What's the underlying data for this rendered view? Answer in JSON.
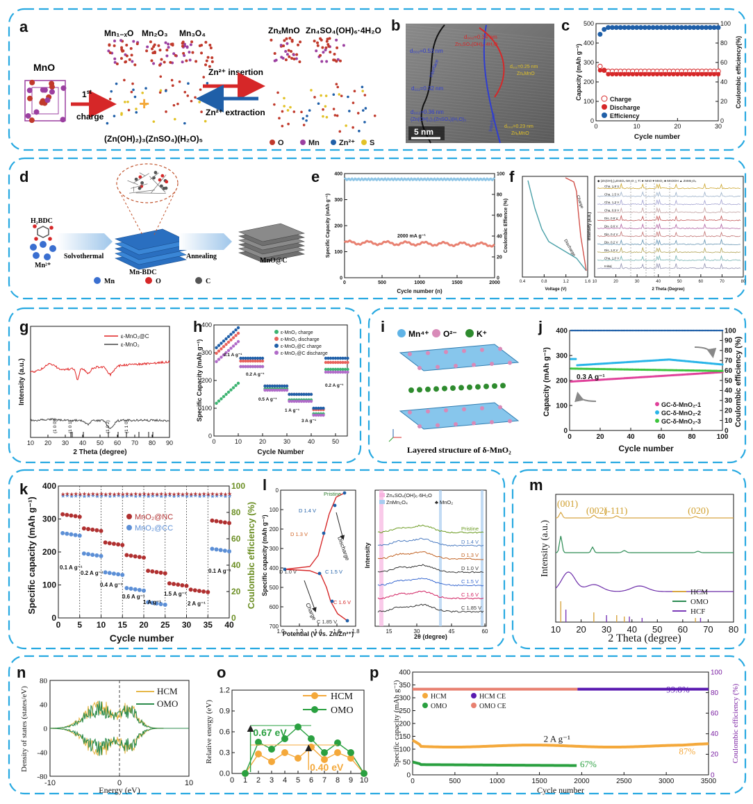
{
  "panel_labels": [
    "a",
    "b",
    "c",
    "d",
    "e",
    "f",
    "g",
    "h",
    "i",
    "j",
    "k",
    "l",
    "m",
    "n",
    "o",
    "p"
  ],
  "a": {
    "mno": "MnO",
    "species_top": [
      "Mn₁₋ₓO",
      "Mn₂O₃",
      "Mn₃O₄"
    ],
    "charge_1": "1",
    "charge_sup": "st",
    "charge_2": "charge",
    "byproduct": "(Zn(OH)₂)₃(ZnSO₄)(H₂O)₅",
    "insertion": "Zn²⁺ insertion",
    "extraction": "Zn²⁺ extraction",
    "products": [
      "ZnₓMnO",
      "Zn₄SO₄(OH)₆·4H₂O"
    ],
    "legend": [
      {
        "label": "O",
        "color": "#c0392b"
      },
      {
        "label": "Mn",
        "color": "#9b3fa0"
      },
      {
        "label": "Zn²⁺",
        "color": "#1f5fa8"
      },
      {
        "label": "S",
        "color": "#e2c227"
      }
    ]
  },
  "b": {
    "scale": "5 nm",
    "annotations": [
      "d₀₀₂=0.53 nm",
      "d₁₁₁=0.32 nm",
      "d₀₀₂=0.36 nm",
      "(Zn(OH)₂)₃(ZnSO₄)(H₂O)₅",
      "d₀₀₂=0.34 nm",
      "Zn₄SO₄(OH)₆·4H₂O",
      "d₁₁₁=0.25 nm",
      "ZnₓMnO",
      "d₀₀₂=0.23 nm",
      "ZnₓMnO",
      "Interface",
      "Interface"
    ]
  },
  "c": {
    "ylabel_left": "Capacity (mAh g⁻¹)",
    "ylabel_right": "Coulombic efficiency(%)",
    "xlabel": "Cycle number",
    "xticks": [
      "0",
      "10",
      "20",
      "30"
    ],
    "yticks_left": [
      "0",
      "100",
      "200",
      "300",
      "400",
      "500"
    ],
    "yticks_right": [
      "0",
      "20",
      "40",
      "60",
      "80",
      "100"
    ],
    "legend": [
      "Charge",
      "Discharge",
      "Efficiency"
    ]
  },
  "d": {
    "h2bdc": "H₂BDC",
    "mn2": "Mn²⁺",
    "solvothermal": "Solvothermal",
    "mnbdc": "Mn-BDC",
    "annealing": "Annealing",
    "mnoc": "MnO@C",
    "legend": [
      "Mn",
      "O",
      "C"
    ]
  },
  "e": {
    "ylabel_left": "Specific Capacity (mAh g⁻¹)",
    "ylabel_right": "Coulombic Effience (%)",
    "xlabel": "Cycle number (n)",
    "xticks": [
      "0",
      "500",
      "1000",
      "1500",
      "2000"
    ],
    "yticks_left": [
      "0",
      "100",
      "200",
      "300",
      "400"
    ],
    "yticks_right": [
      "0",
      "20",
      "40",
      "60",
      "80",
      "100"
    ],
    "annotation": "2000 mA g⁻¹"
  },
  "f": {
    "xlabel_left": "Voltage (V)",
    "xticks_left": [
      "0.4",
      "0.8",
      "1.2",
      "1.6"
    ],
    "curve_labels": [
      "Charge",
      "Discharge"
    ],
    "ylabel_right": "Intensity (a.u.)",
    "xlabel_right": "2 Theta (Degree)",
    "xticks_right": [
      "10",
      "20",
      "30",
      "40",
      "50",
      "60",
      "70",
      "80"
    ],
    "legend": "◆ (Zn(OH)₂)₃ZnSO₄·5H₂O  △ Ti  ★ MnO  ♥ MnO₂  ♣ MnOOH  ▲ ZnMn₂O₄",
    "states": [
      "Cha. 1.8 V",
      "Cha. 1.5 V",
      "Cha. 1.3 V",
      "Cha. 0.9 V",
      "Dis. 0.8 V",
      "Dis. 0.6 V",
      "Dis. 0.4 V",
      "Dis. 0.2 V",
      "Dis. 1.0 V",
      "Cha. 1.0 V",
      "Initial"
    ]
  },
  "g": {
    "legend": [
      "ε-MnO₂@C",
      "ε-MnO₂"
    ],
    "peaks": [
      "(1 0 0)",
      "(1 0 1)",
      "(1 0 2)",
      "(1 1 0)"
    ],
    "xlabel": "2 Theta (degree)",
    "ylabel": "Intensity (a.u.)",
    "xticks": [
      "10",
      "20",
      "30",
      "40",
      "50",
      "60",
      "70",
      "80",
      "90"
    ]
  },
  "h": {
    "legend": [
      "ε-MnO₂ charge",
      "ε-MnO₂ discharge",
      "ε-MnO₂@C charge",
      "ε-MnO₂@C discharge"
    ],
    "rates": [
      "0.1 A g⁻¹",
      "0.2 A g⁻¹",
      "0.5 A g⁻¹",
      "1 A g⁻¹",
      "3 A g⁻¹",
      "0.2 A g⁻¹"
    ],
    "xlabel": "Cycle Number",
    "ylabel": "Specific Capacity (mAh g⁻¹)",
    "xticks": [
      "0",
      "10",
      "20",
      "30",
      "40",
      "50"
    ],
    "yticks": [
      "0",
      "100",
      "200",
      "300",
      "400"
    ]
  },
  "i": {
    "legend": [
      "Mn⁴⁺",
      "O²⁻",
      "K⁺"
    ],
    "caption": "Layered structure of δ-MnO₂"
  },
  "j": {
    "rate": "0.3 A g⁻¹",
    "xlabel": "Cycle number",
    "ylabel_left": "Capacity (mAh g⁻¹)",
    "ylabel_right": "Coulombic efficiency (%)",
    "xticks": [
      "0",
      "20",
      "40",
      "60",
      "80",
      "100"
    ],
    "yticks_left": [
      "0",
      "100",
      "200",
      "300",
      "400"
    ],
    "yticks_right": [
      "0",
      "10",
      "20",
      "30",
      "40",
      "50",
      "60",
      "70",
      "80",
      "90",
      "100"
    ],
    "legend": [
      "GC-δ-MnO₂-1",
      "GC-δ-MnO₂-2",
      "GC-δ-MnO₂-3"
    ]
  },
  "k": {
    "legend": [
      "MnO₂@NC",
      "MnO₂@CC"
    ],
    "rates": [
      "0.1 A g⁻¹",
      "0.2 A g⁻¹",
      "0.4 A g⁻¹",
      "0.6 A g⁻¹",
      "1 A g⁻¹",
      "1.5 A g⁻¹",
      "2 A g⁻¹",
      "0.1 A g⁻¹"
    ],
    "xlabel": "Cycle number",
    "ylabel_left": "Specific capacity (mAh g⁻¹)",
    "ylabel_right": "Coulombic efficiency (%)",
    "xticks": [
      "0",
      "5",
      "10",
      "15",
      "20",
      "25",
      "30",
      "35",
      "40"
    ],
    "yticks_left": [
      "0",
      "100",
      "200",
      "300",
      "400"
    ],
    "yticks_right": [
      "0",
      "20",
      "40",
      "60",
      "80",
      "100"
    ]
  },
  "l": {
    "ylabel_left": "Specific capacity (mAh g⁻¹)",
    "xlabel_left": "Potential (V vs. Zn/Zn²⁺)",
    "yticks_left": [
      "0",
      "100",
      "200",
      "300",
      "400",
      "500",
      "600",
      "700"
    ],
    "xticks_left": [
      "1.0",
      "1.2",
      "1.4",
      "1.6",
      "1.8"
    ],
    "points": [
      "Pristine",
      "D 1.4 V",
      "D 1.3 V",
      "D 1.0 V",
      "C 1.5 V",
      "C 1.6 V",
      "C 1.85 V"
    ],
    "arrows": [
      "Discharge",
      "Charge"
    ],
    "legend": [
      "Zn₄SO₄(OH)₆·6H₂O",
      "ZnMn₂O₄",
      "♣ MnO₂"
    ],
    "states": [
      "Pristine",
      "D 1.4 V",
      "D 1.3 V",
      "D 1.0 V",
      "C 1.5 V",
      "C 1.6 V",
      "C 1.85 V"
    ],
    "ylabel_right": "Intensity",
    "xlabel_right": "2θ (degree)",
    "xticks_right": [
      "15",
      "30",
      "45",
      "60"
    ]
  },
  "m": {
    "ylabel": "Intensity (a.u.)",
    "xlabel": "2 Theta (degree)",
    "xticks": [
      "10",
      "20",
      "30",
      "40",
      "50",
      "60",
      "70",
      "80"
    ],
    "peaks": [
      "(001)",
      "(002)",
      "(-111)",
      "(020)"
    ],
    "legend": [
      "HCM",
      "OMO",
      "HCF"
    ]
  },
  "n": {
    "ylabel": "Density of states (states/eV)",
    "xlabel": "Energy (eV)",
    "xticks": [
      "-10",
      "0",
      "10"
    ],
    "yticks": [
      "80",
      "40",
      "0",
      "-40",
      "-80"
    ],
    "legend": [
      "HCM",
      "OMO"
    ]
  },
  "o": {
    "ylabel": "Relative energy (eV)",
    "xticks": [
      "0",
      "1",
      "2",
      "3",
      "4",
      "5",
      "6",
      "7",
      "8",
      "9",
      "10"
    ],
    "yticks": [
      "0.0",
      "0.3",
      "0.6",
      "0.9",
      "1.2"
    ],
    "legend": [
      "HCM",
      "OMO"
    ],
    "barriers": [
      "0.67 eV",
      "0.40 eV"
    ]
  },
  "p": {
    "ylabel_left": "Specific capacity (mAh g⁻¹)",
    "ylabel_right": "Coulombic efficiency (%)",
    "xlabel": "Cycle number",
    "xticks": [
      "0",
      "500",
      "1000",
      "1500",
      "2000",
      "2500",
      "3000",
      "3500"
    ],
    "yticks_left": [
      "0",
      "50",
      "100",
      "150",
      "200",
      "250",
      "300",
      "350",
      "400"
    ],
    "yticks_right": [
      "0",
      "20",
      "40",
      "60",
      "80",
      "100"
    ],
    "legend": [
      "HCM",
      "HCM CE",
      "OMO",
      "OMO CE"
    ],
    "rate": "2 A g⁻¹",
    "ce": "99.8%",
    "ret_hcm": "87%",
    "ret_omo": "67%"
  },
  "colors": {
    "frame": "#27a9e1",
    "red": "#d62728",
    "blue": "#1f5fa8",
    "green": "#2ca02c",
    "olive": "#6b8e23",
    "orange": "#f4a83a",
    "purple": "#7a1fa2",
    "salmon": "#e88070"
  }
}
